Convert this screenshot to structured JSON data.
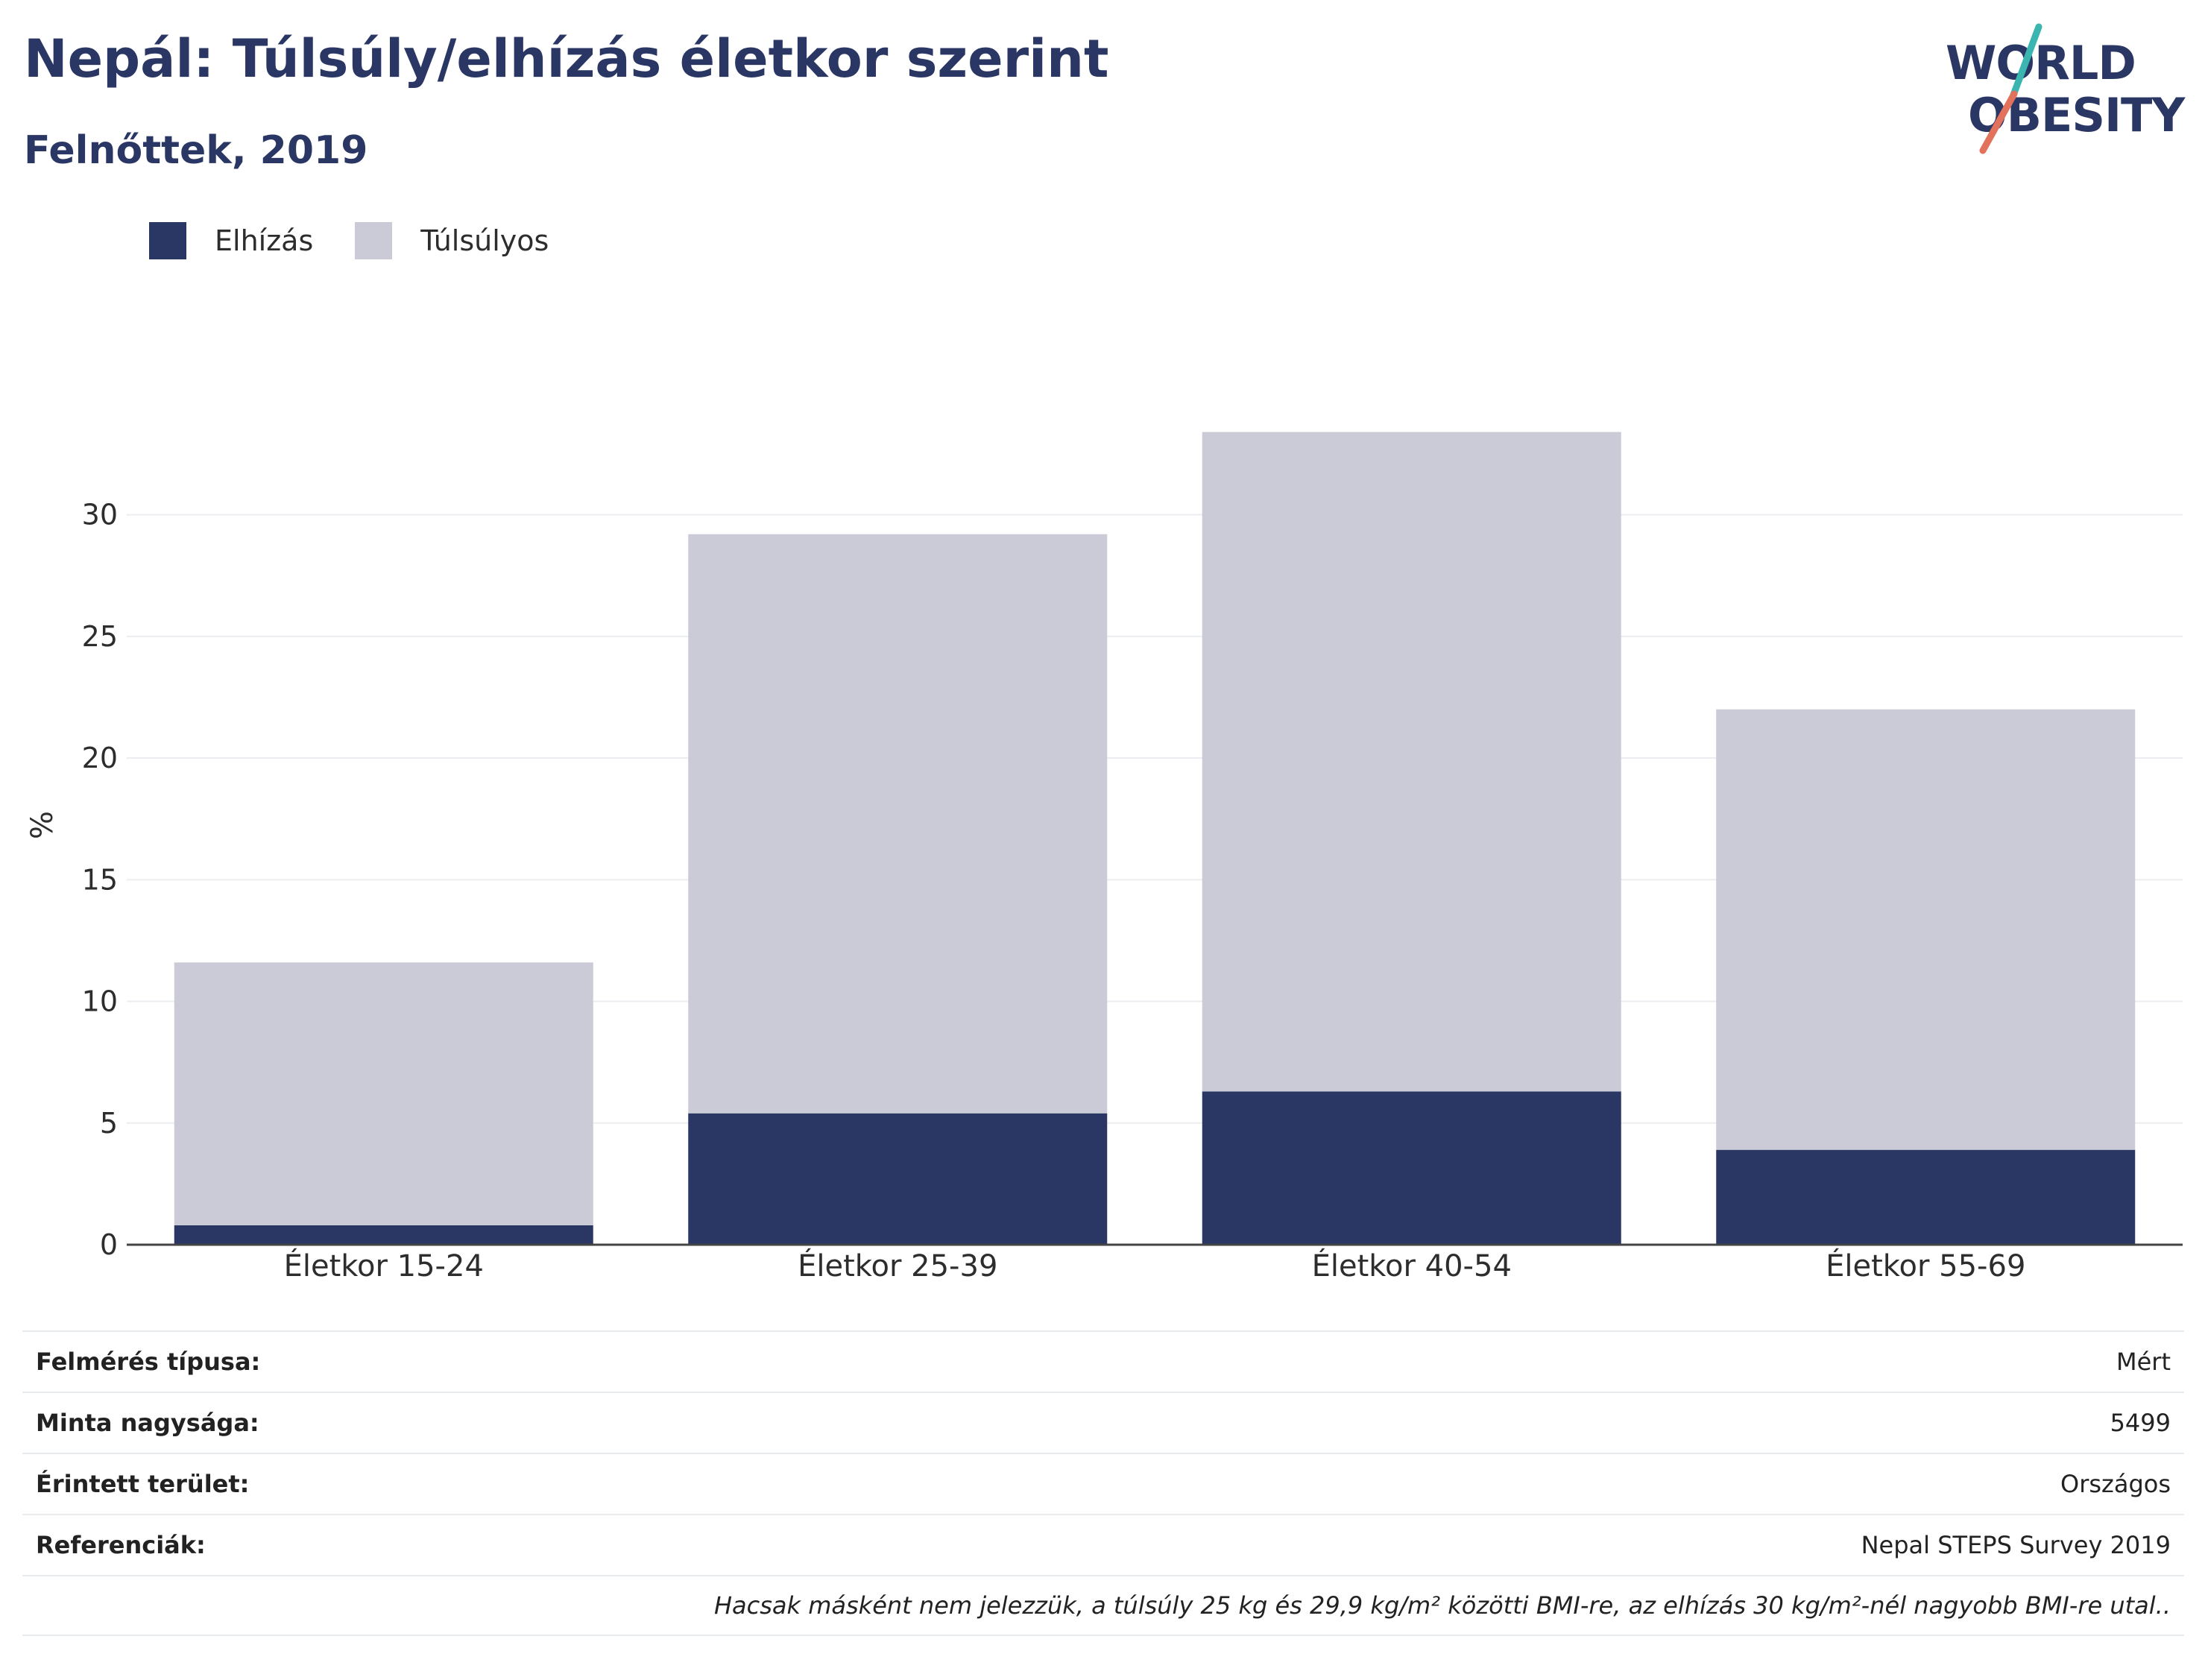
{
  "header": {
    "title": "Nepál: Túlsúly/elhízás életkor szerint",
    "subtitle": "Felnőttek, 2019"
  },
  "logo": {
    "line1": "WORLD",
    "line2": "OBESITY",
    "slash_colors": [
      "#3ab5b0",
      "#e2725b"
    ]
  },
  "legend": [
    {
      "label": "Elhízás",
      "color": "#2a3663"
    },
    {
      "label": "Túlsúlyos",
      "color": "#cacbd6"
    }
  ],
  "chart_data": {
    "type": "bar",
    "stacked": true,
    "categories": [
      "Életkor 15-24",
      "Életkor 25-39",
      "Életkor 40-54",
      "Életkor 55-69"
    ],
    "series": [
      {
        "name": "Elhízás",
        "color": "#2a3663",
        "values": [
          0.8,
          5.4,
          6.3,
          3.9
        ]
      },
      {
        "name": "Túlsúlyos",
        "color": "#cacbd6",
        "values": [
          10.8,
          23.8,
          27.1,
          18.1
        ]
      }
    ],
    "ylabel": "%",
    "ylim": [
      0,
      34
    ],
    "yticks": [
      0,
      5,
      10,
      15,
      20,
      25,
      30
    ],
    "grid": true,
    "legend_position": "top-left"
  },
  "meta": {
    "rows": [
      {
        "key": "Felmérés típusa:",
        "value": "Mért"
      },
      {
        "key": "Minta nagysága:",
        "value": "5499"
      },
      {
        "key": "Érintett terület:",
        "value": "Országos"
      },
      {
        "key": "Referenciák:",
        "value": "Nepal STEPS Survey 2019"
      }
    ],
    "note": "Hacsak másként nem jelezzük, a túlsúly 25 kg és 29,9 kg/m² közötti BMI-re, az elhízás 30 kg/m²-nél nagyobb BMI-re utal.."
  }
}
